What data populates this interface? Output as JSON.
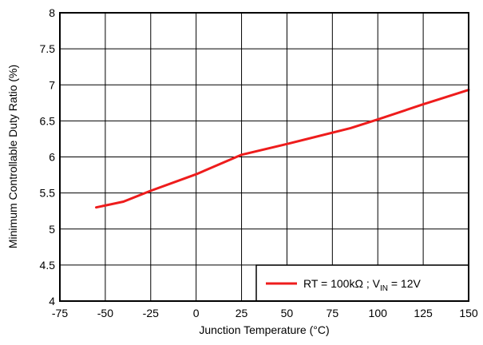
{
  "chart_data": {
    "type": "line",
    "xlabel": "Junction Temperature (°C)",
    "ylabel": "Minimum Controllable Duty Ratio (%)",
    "xlim": [
      -75,
      150
    ],
    "ylim": [
      4,
      8
    ],
    "x_ticks": [
      "-75",
      "-50",
      "-25",
      "0",
      "25",
      "50",
      "75",
      "100",
      "125",
      "150"
    ],
    "y_ticks": [
      "4",
      "4.5",
      "5",
      "5.5",
      "6",
      "6.5",
      "7",
      "7.5",
      "8"
    ],
    "grid": true,
    "legend_position": "bottom-right",
    "series": [
      {
        "legend": {
          "prefix": "RT = 100kΩ  ; V",
          "subscript": "IN",
          "suffix": " = 12V"
        },
        "color": "#ee1c1c",
        "x": [
          -55,
          -40,
          -25,
          0,
          25,
          50,
          85,
          100,
          125,
          150
        ],
        "y": [
          5.3,
          5.38,
          5.53,
          5.76,
          6.03,
          6.18,
          6.4,
          6.52,
          6.73,
          6.93
        ]
      }
    ]
  }
}
